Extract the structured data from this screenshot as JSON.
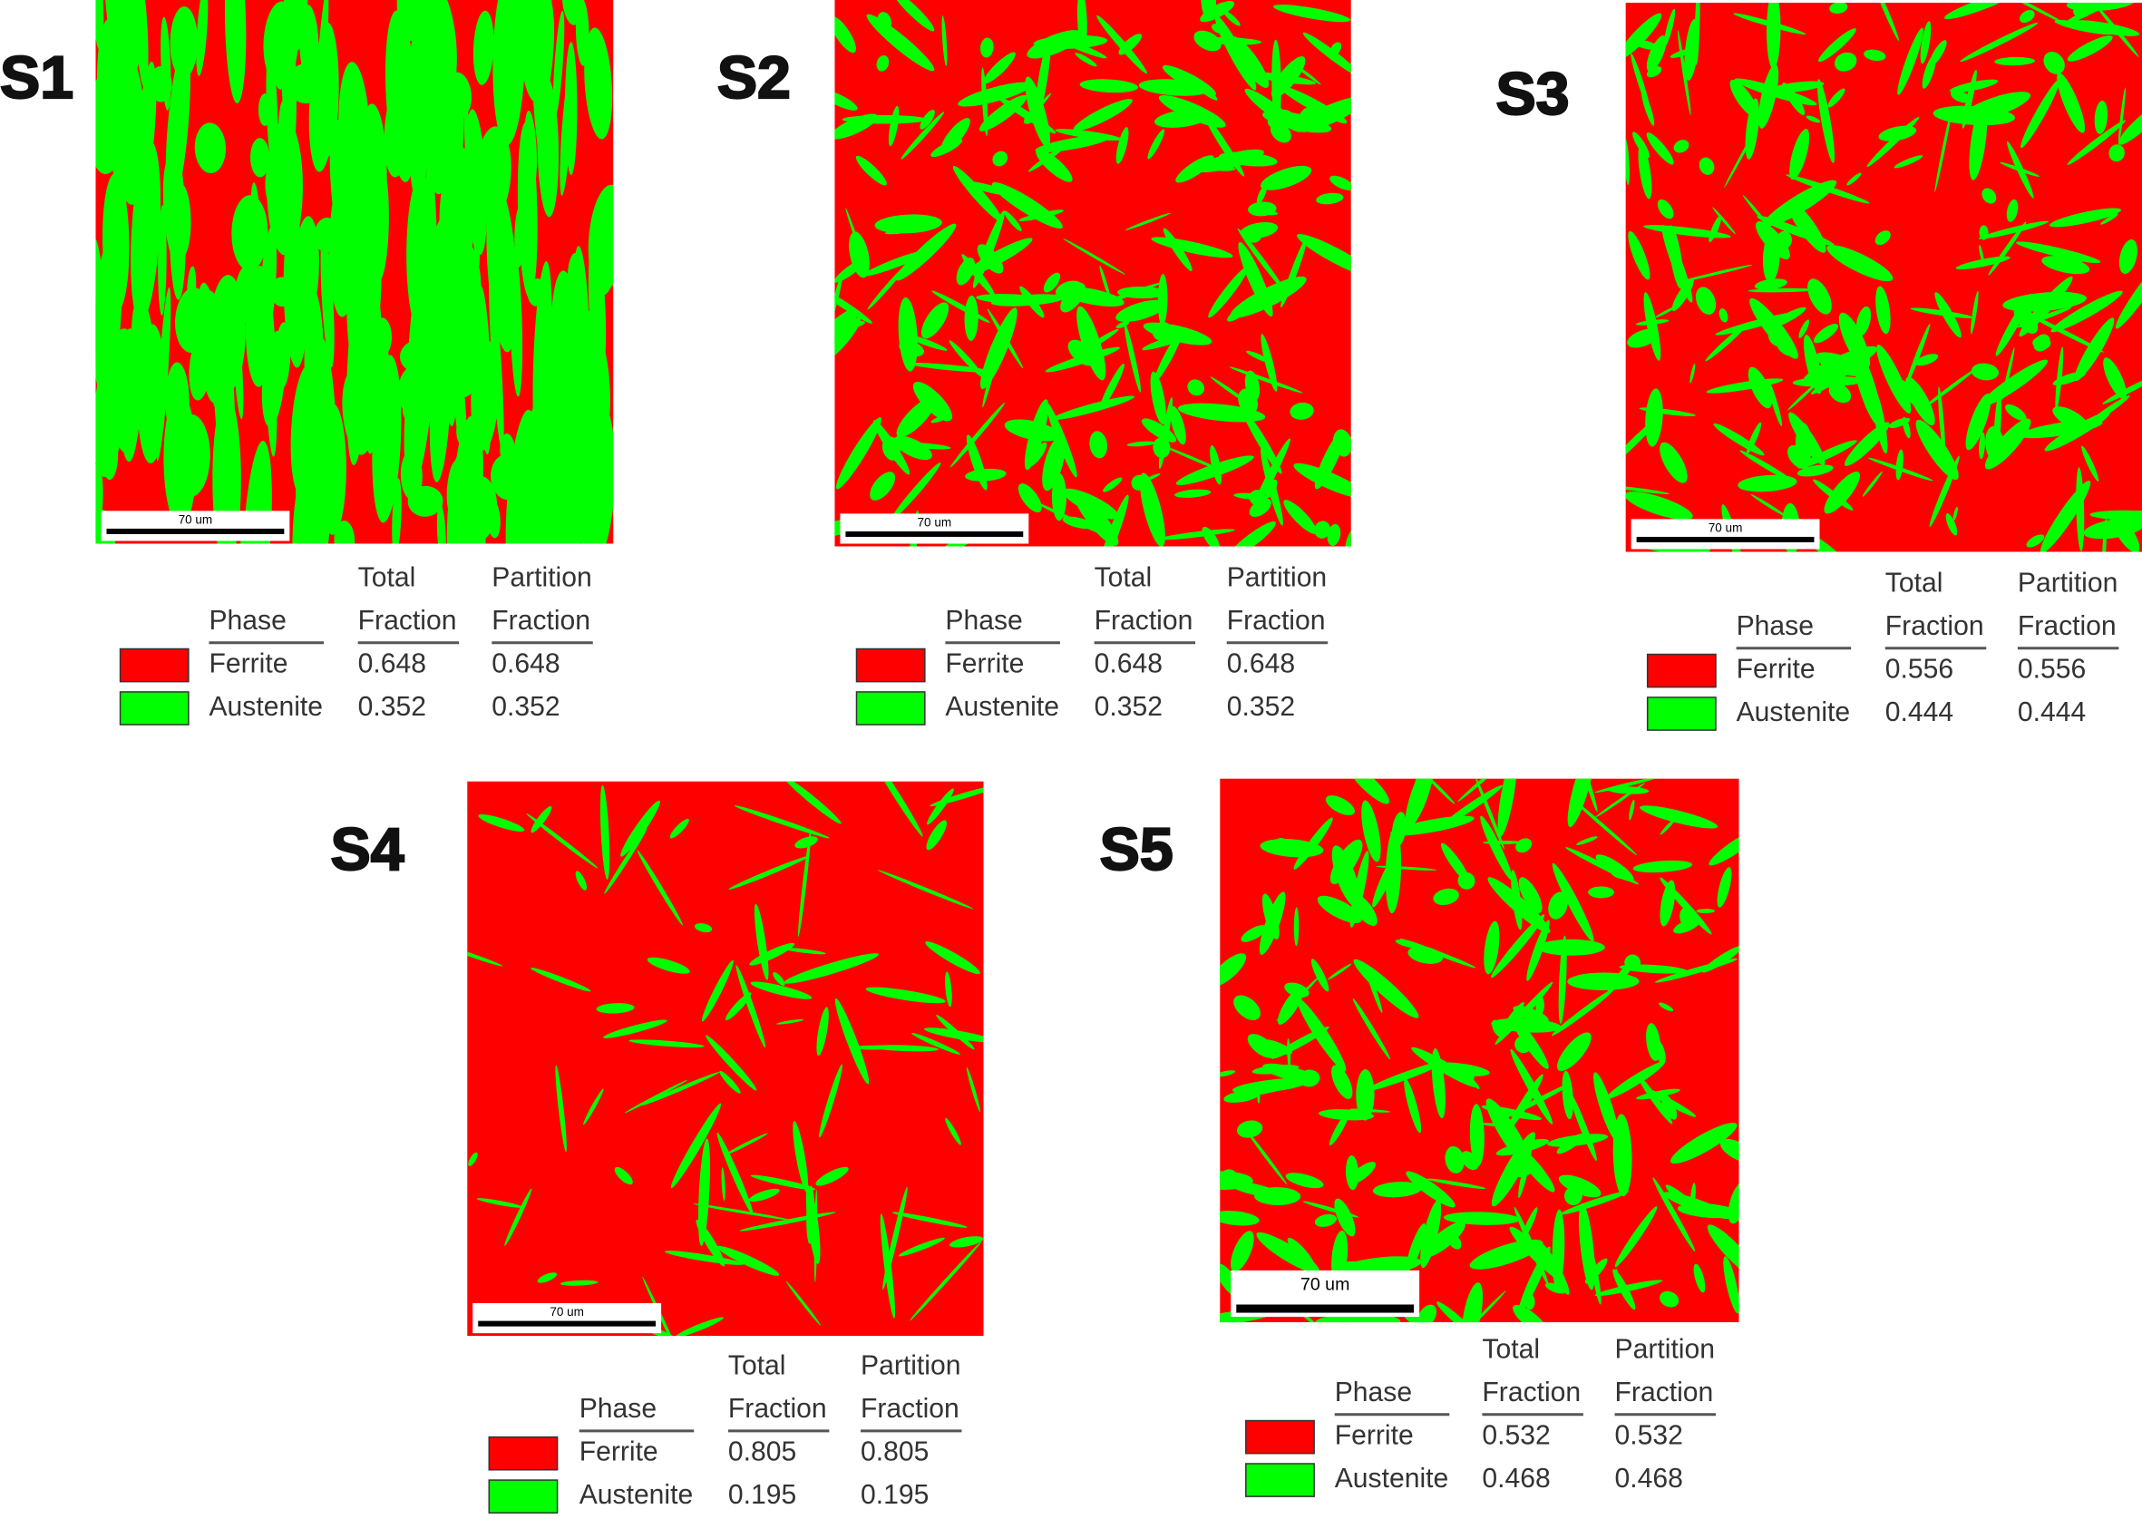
{
  "panels": [
    {
      "label": "S1",
      "scale_bar": "70 um",
      "columns": [
        {
          "lines": [
            "Phase"
          ]
        },
        {
          "lines": [
            "Total",
            "Fraction"
          ]
        },
        {
          "lines": [
            "Partition",
            "Fraction"
          ]
        }
      ],
      "rows": [
        {
          "phase": "Ferrite",
          "color": "#ff0000",
          "total": "0.648",
          "partition": "0.648"
        },
        {
          "phase": "Austenite",
          "color": "#00ff00",
          "total": "0.352",
          "partition": "0.352"
        }
      ]
    },
    {
      "label": "S2",
      "scale_bar": "70 um",
      "columns": [
        {
          "lines": [
            "Phase"
          ]
        },
        {
          "lines": [
            "Total",
            "Fraction"
          ]
        },
        {
          "lines": [
            "Partition",
            "Fraction"
          ]
        }
      ],
      "rows": [
        {
          "phase": "Ferrite",
          "color": "#ff0000",
          "total": "0.648",
          "partition": "0.648"
        },
        {
          "phase": "Austenite",
          "color": "#00ff00",
          "total": "0.352",
          "partition": "0.352"
        }
      ]
    },
    {
      "label": "S3",
      "scale_bar": "70 um",
      "columns": [
        {
          "lines": [
            "Phase"
          ]
        },
        {
          "lines": [
            "Total",
            "Fraction"
          ]
        },
        {
          "lines": [
            "Partition",
            "Fraction"
          ]
        }
      ],
      "rows": [
        {
          "phase": "Ferrite",
          "color": "#ff0000",
          "total": "0.556",
          "partition": "0.556"
        },
        {
          "phase": "Austenite",
          "color": "#00ff00",
          "total": "0.444",
          "partition": "0.444"
        }
      ]
    },
    {
      "label": "S4",
      "scale_bar": "70 um",
      "columns": [
        {
          "lines": [
            "Phase"
          ]
        },
        {
          "lines": [
            "Total",
            "Fraction"
          ]
        },
        {
          "lines": [
            "Partition",
            "Fraction"
          ]
        }
      ],
      "rows": [
        {
          "phase": "Ferrite",
          "color": "#ff0000",
          "total": "0.805",
          "partition": "0.805"
        },
        {
          "phase": "Austenite",
          "color": "#00ff00",
          "total": "0.195",
          "partition": "0.195"
        }
      ]
    },
    {
      "label": "S5",
      "scale_bar": "70 um",
      "columns": [
        {
          "lines": [
            "Phase"
          ]
        },
        {
          "lines": [
            "Total",
            "Fraction"
          ]
        },
        {
          "lines": [
            "Partition",
            "Fraction"
          ]
        }
      ],
      "rows": [
        {
          "phase": "Ferrite",
          "color": "#ff0000",
          "total": "0.532",
          "partition": "0.532"
        },
        {
          "phase": "Austenite",
          "color": "#00ff00",
          "total": "0.468",
          "partition": "0.468"
        }
      ]
    }
  ]
}
